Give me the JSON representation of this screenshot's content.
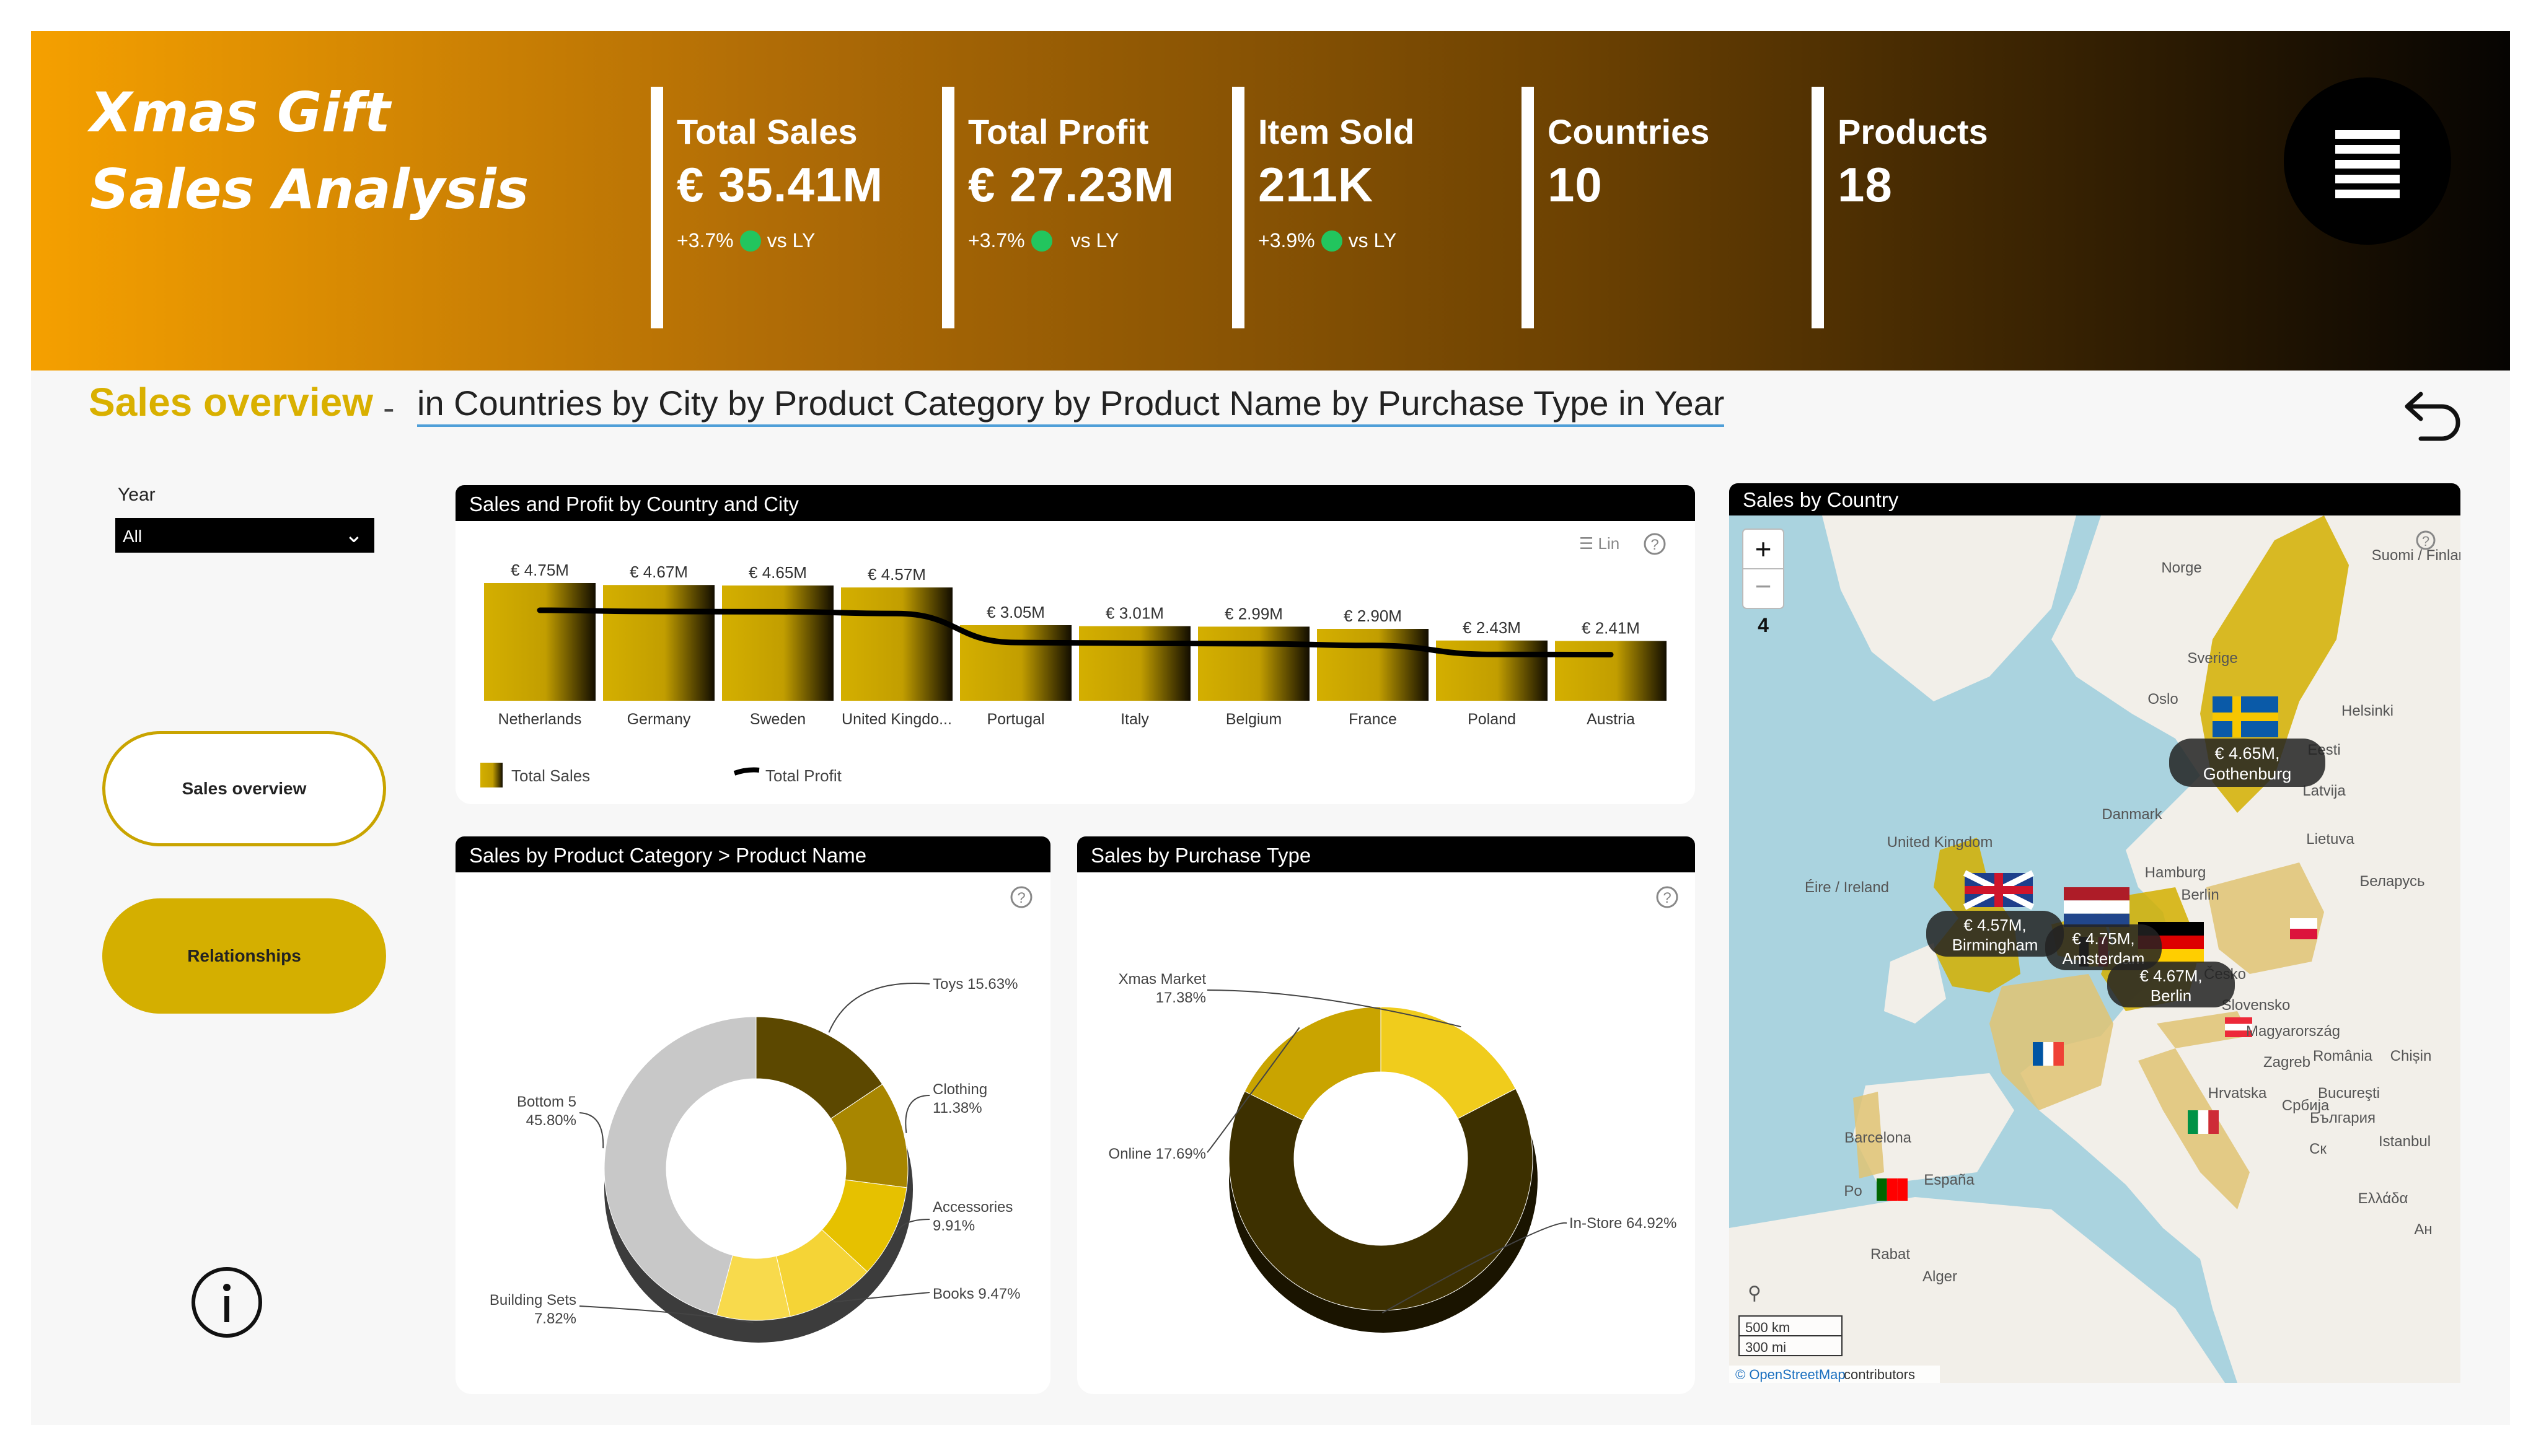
{
  "header": {
    "title_line1": "Xmas Gift",
    "title_line2": "Sales Analysis",
    "kpis": [
      {
        "label": "Total Sales",
        "value": "€ 35.41M",
        "delta": "+3.7%",
        "vs": "vs LY"
      },
      {
        "label": "Total Profit",
        "value": "€ 27.23M",
        "delta": "+3.7%",
        "vs": "vs LY"
      },
      {
        "label": "Item Sold",
        "value": "211K",
        "delta": "+3.9%",
        "vs": "vs LY"
      },
      {
        "label": "Countries",
        "value": "10"
      },
      {
        "label": "Products",
        "value": "18"
      }
    ],
    "menu_icon": "hamburger-menu-icon"
  },
  "overview": {
    "title": "Sales overview",
    "separator": "-",
    "subtitle": "in Countries by City by Product Category by Product Name by Purchase Type in Year",
    "back_icon": "back-arrow-icon"
  },
  "filters": {
    "year_label": "Year",
    "year_value": "All"
  },
  "nav": {
    "sales_overview": "Sales overview",
    "relationships": "Relationships",
    "info_icon": "info-icon"
  },
  "colors": {
    "gold": "#d4af00",
    "dark_gold": "#6b5200",
    "positive": "#22c55e",
    "header_start": "#f5a000",
    "header_end": "#060402"
  },
  "panels": {
    "country_city": {
      "title": "Sales and Profit by Country and City",
      "scale_toggle": "Lin",
      "legend_sales": "Total Sales",
      "legend_profit": "Total Profit"
    },
    "category": {
      "title": "Sales by Product Category > Product Name"
    },
    "purchase": {
      "title": "Sales by Purchase Type"
    },
    "map": {
      "title": "Sales by Country",
      "zoom_in": "+",
      "zoom_out": "−",
      "zoom_level": "4",
      "scale_km": "500 km",
      "scale_mi": "300 mi",
      "attribution_link": "© OpenStreetMap",
      "attribution_rest": "contributors",
      "bubbles": [
        {
          "value": "€ 4.65M,",
          "city": "Gothenburg"
        },
        {
          "value": "€ 4.57M,",
          "city": "Birmingham"
        },
        {
          "value": "€ 4.75M,",
          "city": "Amsterdam"
        },
        {
          "value": "€ 4.67M,",
          "city": "Berlin"
        }
      ],
      "place_labels": [
        "Norge",
        "Sverige",
        "Oslo",
        "Suomi / Finland",
        "Helsinki",
        "Eesti",
        "Latvija",
        "Lietuva",
        "Danmark",
        "Hamburg",
        "Berlin",
        "Беларусь",
        "United Kingdom",
        "Éire / Ireland",
        "Česko",
        "Slovensko",
        "Magyarország",
        "Zagreb",
        "Hrvatska",
        "Србија",
        "România",
        "Bucureşti",
        "България",
        "Barcelona",
        "España",
        "Po",
        "Rabat",
        "Alger",
        "Istanbul",
        "Ελλάδα",
        "Chișin",
        "Cк",
        "Ан"
      ]
    }
  },
  "chart_data": [
    {
      "type": "bar",
      "title": "Sales and Profit by Country and City",
      "categories": [
        "Netherlands",
        "Germany",
        "Sweden",
        "United Kingdo...",
        "Portugal",
        "Italy",
        "Belgium",
        "France",
        "Poland",
        "Austria"
      ],
      "series": [
        {
          "name": "Total Sales",
          "values": [
            4.75,
            4.67,
            4.65,
            4.57,
            3.05,
            3.01,
            2.99,
            2.9,
            2.43,
            2.41
          ],
          "labels": [
            "€ 4.75M",
            "€ 4.67M",
            "€ 4.65M",
            "€ 4.57M",
            "€ 3.05M",
            "€ 3.01M",
            "€ 2.99M",
            "€ 2.90M",
            "€ 2.43M",
            "€ 2.41M"
          ]
        },
        {
          "name": "Total Profit",
          "type": "line",
          "values": [
            3.65,
            3.6,
            3.59,
            3.52,
            2.35,
            2.32,
            2.3,
            2.23,
            1.87,
            1.86
          ]
        }
      ],
      "ylim": [
        0,
        5
      ]
    },
    {
      "type": "pie",
      "title": "Sales by Product Category > Product Name",
      "style": "donut-3d",
      "slices": [
        {
          "label": "Toys",
          "value": 15.63,
          "text": "Toys 15.63%"
        },
        {
          "label": "Clothing",
          "value": 11.38,
          "text": "11.38%"
        },
        {
          "label": "Accessories",
          "value": 9.91,
          "text": "9.91%"
        },
        {
          "label": "Books",
          "value": 9.47,
          "text": "Books 9.47%"
        },
        {
          "label": "Building Sets",
          "value": 7.82,
          "text": "7.82%"
        },
        {
          "label": "Bottom 5",
          "value": 45.8,
          "text": "45.80%"
        }
      ]
    },
    {
      "type": "pie",
      "title": "Sales by Purchase Type",
      "style": "donut-3d",
      "slices": [
        {
          "label": "Xmas Market",
          "value": 17.38,
          "text": "17.38%"
        },
        {
          "label": "In-Store",
          "value": 64.92,
          "text": "In-Store 64.92%"
        },
        {
          "label": "Online",
          "value": 17.69,
          "text": "Online 17.69%"
        }
      ]
    }
  ]
}
